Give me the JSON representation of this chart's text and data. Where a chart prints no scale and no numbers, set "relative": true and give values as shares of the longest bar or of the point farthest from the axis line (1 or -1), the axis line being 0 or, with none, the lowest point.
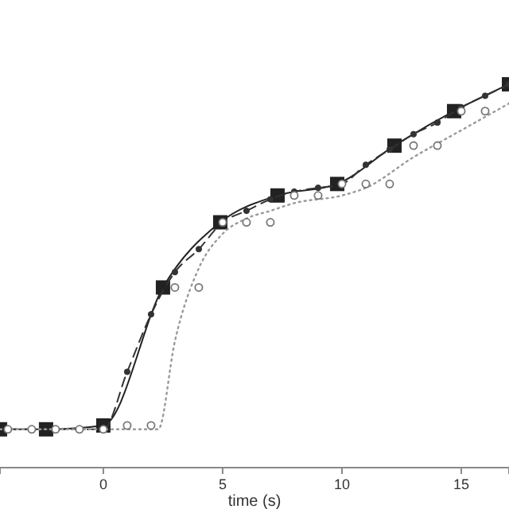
{
  "chart_data": {
    "type": "line",
    "xlabel": "time (s)",
    "relative": true,
    "xlim": [
      -4.33,
      17
    ],
    "xticks": [
      0,
      5,
      10,
      15
    ],
    "grid": false,
    "series": [
      {
        "color": "#222222",
        "line_style": "solid",
        "marker": "square",
        "x": [
          -4.33,
          -2.4,
          0,
          2.5,
          4.9,
          7.3,
          9.8,
          12.2,
          14.7,
          17
        ],
        "values": [
          0.1,
          0.1,
          0.11,
          0.47,
          0.64,
          0.71,
          0.74,
          0.84,
          0.93,
          1
        ]
      },
      {
        "color": "#333333",
        "line_style": "dashed",
        "marker": "circle",
        "x": [
          -4,
          -3,
          -2,
          -1,
          0,
          1,
          2,
          3,
          4,
          5,
          6,
          7,
          8,
          9,
          10,
          11,
          12,
          13,
          14,
          15,
          16,
          17
        ],
        "values": [
          0.1,
          0.1,
          0.1,
          0.1,
          0.1,
          0.25,
          0.4,
          0.51,
          0.57,
          0.64,
          0.67,
          0.7,
          0.72,
          0.73,
          0.74,
          0.79,
          0.83,
          0.87,
          0.9,
          0.94,
          0.97,
          1
        ]
      },
      {
        "color": "#999999",
        "line_style": "dotted",
        "marker": "none",
        "x": [
          -4.33,
          2.3,
          3,
          4,
          5,
          6,
          7,
          8,
          10,
          11,
          13,
          15,
          17
        ],
        "values": [
          0.1,
          0.1,
          0.33,
          0.52,
          0.61,
          0.65,
          0.67,
          0.69,
          0.71,
          0.73,
          0.81,
          0.88,
          0.95
        ]
      },
      {
        "type": "scatter",
        "color": "#777777",
        "marker": "circle",
        "x": [
          -4,
          -3,
          -2,
          -1,
          0,
          1,
          2,
          3,
          4,
          5,
          6,
          7,
          8,
          9,
          10,
          11,
          12,
          13,
          14,
          15,
          16
        ],
        "values": [
          0.1,
          0.1,
          0.1,
          0.1,
          0.1,
          0.11,
          0.11,
          0.47,
          0.47,
          0.64,
          0.64,
          0.64,
          0.71,
          0.71,
          0.74,
          0.74,
          0.74,
          0.84,
          0.84,
          0.93,
          0.93
        ]
      }
    ]
  }
}
